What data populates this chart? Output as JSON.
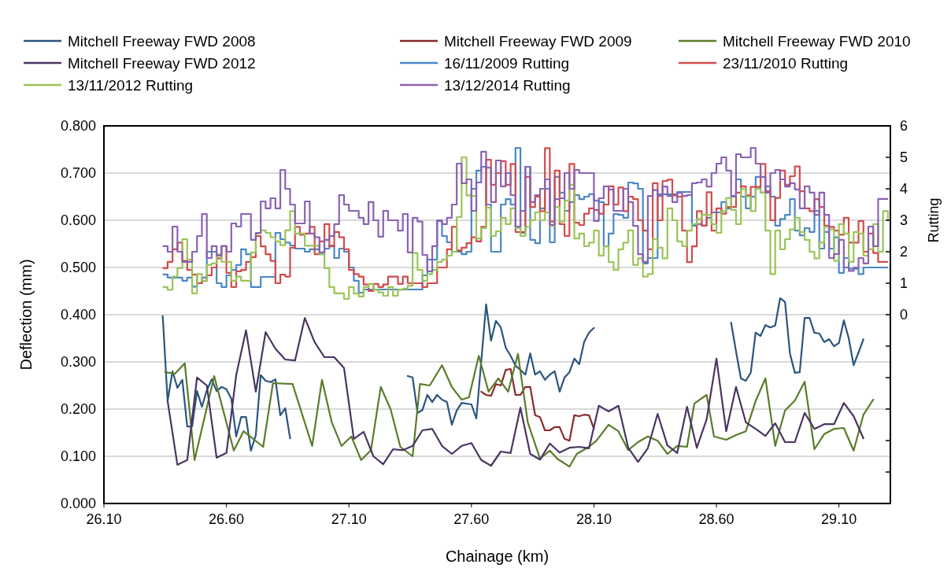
{
  "chart_data": {
    "type": "line",
    "xlabel": "Chainage (km)",
    "ylabel": "Deflection (mm)",
    "y2label": "Rutting",
    "legend": "top",
    "grid": "y",
    "xlim": [
      26.1,
      29.31
    ],
    "xticks": [
      {
        "value": 26.1,
        "label": "26.10"
      },
      {
        "value": 26.6,
        "label": "26.60"
      },
      {
        "value": 27.1,
        "label": "27.10"
      },
      {
        "value": 27.6,
        "label": "27.60"
      },
      {
        "value": 28.1,
        "label": "28.10"
      },
      {
        "value": 28.6,
        "label": "28.60"
      },
      {
        "value": 29.1,
        "label": "29.10"
      }
    ],
    "ylim": [
      0,
      0.8
    ],
    "yticks": [
      {
        "value": 0,
        "label": "0.000"
      },
      {
        "value": 0.1,
        "label": "0.100"
      },
      {
        "value": 0.2,
        "label": "0.200"
      },
      {
        "value": 0.3,
        "label": "0.300"
      },
      {
        "value": 0.4,
        "label": "0.400"
      },
      {
        "value": 0.5,
        "label": "0.500"
      },
      {
        "value": 0.6,
        "label": "0.600"
      },
      {
        "value": 0.7,
        "label": "0.700"
      },
      {
        "value": 0.8,
        "label": "0.800"
      }
    ],
    "y2lim": [
      -6,
      6
    ],
    "y2ticks": [
      {
        "value": -6,
        "label": null
      },
      {
        "value": -5,
        "label": null
      },
      {
        "value": -4,
        "label": null
      },
      {
        "value": -3,
        "label": null
      },
      {
        "value": -2,
        "label": null
      },
      {
        "value": -1,
        "label": null
      },
      0,
      1,
      2,
      3,
      4,
      5,
      6
    ],
    "x": [
      26.34,
      26.36,
      26.38,
      26.4,
      26.42,
      26.44,
      26.46,
      26.48,
      26.5,
      26.52,
      26.54,
      26.56,
      26.58,
      26.6,
      26.62,
      26.64,
      26.66,
      26.68,
      26.7,
      26.72,
      26.74,
      26.76,
      26.78,
      26.8,
      26.82,
      26.84,
      26.86,
      26.88,
      26.9,
      26.92,
      26.94,
      26.96,
      26.98,
      27.0,
      27.02,
      27.04,
      27.06,
      27.08,
      27.1,
      27.12,
      27.14,
      27.16,
      27.18,
      27.2,
      27.22,
      27.24,
      27.26,
      27.28,
      27.3,
      27.32,
      27.34,
      27.36,
      27.38,
      27.4,
      27.42,
      27.44,
      27.46,
      27.48,
      27.5,
      27.52,
      27.54,
      27.56,
      27.58,
      27.6,
      27.62,
      27.64,
      27.66,
      27.68,
      27.7,
      27.72,
      27.74,
      27.76,
      27.78,
      27.8,
      27.82,
      27.84,
      27.86,
      27.88,
      27.9,
      27.92,
      27.94,
      27.96,
      27.98,
      28.0,
      28.02,
      28.04,
      28.06,
      28.08,
      28.1,
      28.12,
      28.14,
      28.16,
      28.18,
      28.2,
      28.22,
      28.24,
      28.26,
      28.28,
      28.3,
      28.32,
      28.34,
      28.36,
      28.38,
      28.4,
      28.42,
      28.44,
      28.46,
      28.48,
      28.5,
      28.52,
      28.54,
      28.56,
      28.58,
      28.6,
      28.62,
      28.64,
      28.66,
      28.68,
      28.7,
      28.72,
      28.74,
      28.76,
      28.78,
      28.8,
      28.82,
      28.84,
      28.86,
      28.88,
      28.9,
      28.92,
      28.94,
      28.96,
      28.98,
      29.0,
      29.02,
      29.04,
      29.06,
      29.08,
      29.1,
      29.12,
      29.14,
      29.16,
      29.18,
      29.2,
      29.22,
      29.24,
      29.26,
      29.28,
      29.3
    ],
    "series": [
      {
        "name": "Mitchell Freeway FWD 2008",
        "color": "#2b557f",
        "x": [
          26.34,
          26.36,
          26.38,
          26.4,
          26.42,
          26.44,
          26.46,
          26.48,
          26.5,
          26.52,
          26.54,
          26.56,
          26.58,
          26.6,
          26.62,
          26.64,
          26.66,
          26.68,
          26.7,
          26.72,
          26.74,
          26.76,
          26.78,
          26.8,
          26.82,
          26.84,
          26.86,
          27.1,
          27.34,
          27.36,
          27.38,
          27.4,
          27.42,
          27.44,
          27.46,
          27.48,
          27.5,
          27.52,
          27.54,
          27.56,
          27.6,
          27.62,
          27.66,
          27.68,
          27.7,
          27.72,
          27.74,
          27.76,
          27.78,
          27.8,
          27.82,
          27.84,
          27.86,
          27.88,
          27.9,
          27.92,
          27.94,
          27.96,
          27.98,
          28.0,
          28.02,
          28.04,
          28.06,
          28.08,
          28.1,
          28.4,
          28.66,
          28.68,
          28.7,
          28.72,
          28.74,
          28.76,
          28.78,
          28.8,
          28.82,
          28.84,
          28.86,
          28.88,
          28.9,
          28.92,
          28.94,
          28.96,
          28.98,
          29.0,
          29.02,
          29.04,
          29.06,
          29.08,
          29.1,
          29.12,
          29.14,
          29.16,
          29.18,
          29.2
        ],
        "values": [
          0.397,
          0.217,
          0.28,
          0.245,
          0.262,
          0.163,
          0.163,
          0.238,
          0.205,
          0.24,
          0.263,
          0.238,
          0.247,
          0.242,
          0.222,
          0.142,
          0.183,
          0.183,
          0.112,
          0.145,
          0.272,
          0.26,
          0.257,
          0.263,
          0.187,
          0.202,
          0.138,
          null,
          0.27,
          0.267,
          0.192,
          0.198,
          0.23,
          0.215,
          0.23,
          0.22,
          0.215,
          0.167,
          0.197,
          0.213,
          0.21,
          0.18,
          0.422,
          0.345,
          0.387,
          0.373,
          0.33,
          0.313,
          0.292,
          0.283,
          0.273,
          0.318,
          0.273,
          0.28,
          0.262,
          0.273,
          0.28,
          0.237,
          0.267,
          0.278,
          0.307,
          0.295,
          0.342,
          0.362,
          0.372,
          null,
          0.383,
          0.322,
          0.265,
          0.26,
          0.277,
          0.362,
          0.355,
          0.378,
          0.373,
          0.377,
          0.435,
          0.427,
          0.318,
          0.277,
          0.278,
          0.393,
          0.393,
          0.362,
          0.36,
          0.342,
          0.348,
          0.333,
          0.34,
          0.388,
          0.35,
          0.293,
          0.32,
          0.348
        ]
      },
      {
        "name": "Mitchell Freeway FWD 2009",
        "color": "#8b2a2a",
        "x": [
          27.64,
          27.66,
          27.68,
          27.7,
          27.72,
          27.74,
          27.76,
          27.78,
          27.8,
          27.82,
          27.84,
          27.86,
          27.88,
          27.9,
          27.92,
          27.94,
          27.96,
          27.98,
          28.0,
          28.02,
          28.04,
          28.06,
          28.08,
          28.1
        ],
        "values": [
          0.237,
          0.23,
          0.228,
          0.253,
          0.25,
          0.283,
          0.285,
          0.23,
          0.23,
          0.247,
          0.247,
          0.187,
          0.183,
          0.155,
          0.155,
          0.162,
          0.162,
          0.137,
          0.133,
          0.187,
          0.185,
          0.188,
          0.187,
          0.158
        ]
      },
      {
        "name": "Mitchell Freeway FWD 2010",
        "color": "#5b7c2a",
        "x": [
          26.35,
          26.39,
          26.43,
          26.47,
          26.55,
          26.63,
          26.67,
          26.75,
          26.79,
          26.87,
          26.95,
          26.99,
          27.03,
          27.07,
          27.11,
          27.15,
          27.19,
          27.23,
          27.27,
          27.31,
          27.36,
          27.39,
          27.43,
          27.48,
          27.52,
          27.56,
          27.59,
          27.63,
          27.67,
          27.71,
          27.75,
          27.79,
          27.83,
          27.88,
          27.92,
          27.95,
          28.0,
          28.03,
          28.08,
          28.11,
          28.16,
          28.2,
          28.24,
          28.28,
          28.32,
          28.36,
          28.4,
          28.44,
          28.48,
          28.51,
          28.56,
          28.59,
          28.64,
          28.68,
          28.72,
          28.76,
          28.8,
          28.84,
          28.88,
          28.92,
          28.96,
          29.0,
          29.04,
          29.08,
          29.12,
          29.16,
          29.2,
          29.24
        ],
        "values": [
          0.278,
          0.275,
          0.297,
          0.092,
          0.27,
          0.112,
          0.153,
          0.12,
          0.255,
          0.253,
          0.122,
          0.262,
          0.172,
          0.122,
          0.142,
          0.092,
          0.113,
          0.247,
          0.2,
          0.12,
          0.1,
          0.253,
          0.25,
          0.293,
          0.247,
          0.22,
          0.225,
          0.313,
          0.237,
          0.265,
          0.237,
          0.317,
          0.172,
          0.095,
          0.112,
          0.095,
          0.078,
          0.105,
          0.12,
          0.133,
          0.167,
          0.153,
          0.113,
          0.13,
          0.142,
          0.133,
          0.105,
          0.122,
          0.12,
          0.212,
          0.23,
          0.142,
          0.135,
          0.145,
          0.153,
          0.217,
          0.265,
          0.122,
          0.197,
          0.218,
          0.258,
          0.115,
          0.147,
          0.158,
          0.16,
          0.112,
          0.188,
          0.22
        ]
      },
      {
        "name": "Mitchell Freeway FWD 2012",
        "color": "#4b3463",
        "x": [
          26.36,
          26.4,
          26.44,
          26.48,
          26.52,
          26.56,
          26.6,
          26.64,
          26.68,
          26.72,
          26.76,
          26.8,
          26.84,
          26.88,
          26.92,
          26.96,
          27.0,
          27.04,
          27.08,
          27.12,
          27.16,
          27.2,
          27.24,
          27.28,
          27.32,
          27.36,
          27.4,
          27.44,
          27.48,
          27.52,
          27.56,
          27.6,
          27.64,
          27.68,
          27.72,
          27.76,
          27.8,
          27.84,
          27.88,
          27.92,
          27.96,
          28.0,
          28.04,
          28.08,
          28.12,
          28.16,
          28.2,
          28.24,
          28.28,
          28.32,
          28.36,
          28.4,
          28.44,
          28.48,
          28.52,
          28.56,
          28.6,
          28.64,
          28.68,
          28.72,
          28.76,
          28.8,
          28.84,
          28.88,
          28.92,
          28.96,
          29.0,
          29.04,
          29.08,
          29.12,
          29.16,
          29.2
        ],
        "values": [
          0.217,
          0.082,
          0.092,
          0.267,
          0.25,
          0.097,
          0.107,
          0.272,
          0.367,
          0.237,
          0.363,
          0.328,
          0.305,
          0.303,
          0.393,
          0.342,
          0.31,
          0.31,
          0.287,
          0.137,
          0.152,
          0.1,
          0.083,
          0.115,
          0.113,
          0.122,
          0.155,
          0.158,
          0.122,
          0.105,
          0.122,
          0.128,
          0.092,
          0.08,
          0.11,
          0.107,
          0.203,
          0.105,
          0.093,
          0.127,
          0.108,
          0.118,
          0.12,
          0.117,
          0.207,
          0.195,
          0.207,
          0.118,
          0.088,
          0.117,
          0.19,
          0.123,
          0.107,
          0.205,
          0.118,
          0.178,
          0.307,
          0.153,
          0.247,
          0.172,
          0.158,
          0.143,
          0.17,
          0.13,
          0.13,
          0.192,
          0.158,
          0.168,
          0.168,
          0.213,
          0.185,
          0.138
        ]
      },
      {
        "name": "16/11/2009 Rutting",
        "type": "step",
        "axis": "y2",
        "color": "#4a87c6",
        "values": [
          1.28,
          1.18,
          1.18,
          1.18,
          1.08,
          1.18,
          0.89,
          1.0,
          1.18,
          2.0,
          2.0,
          1.0,
          0.88,
          1.25,
          1.42,
          1.58,
          2.08,
          1.92,
          0.88,
          0.88,
          1.2,
          1.2,
          1.2,
          2.6,
          2.4,
          2.29,
          2.2,
          2.1,
          2.1,
          2.0,
          2.08,
          2.08,
          1.92,
          2.1,
          2.2,
          1.8,
          2.1,
          2.0,
          1.5,
          1.08,
          0.7,
          0.8,
          0.8,
          0.8,
          0.8,
          0.8,
          0.8,
          0.8,
          0.8,
          0.8,
          0.8,
          0.8,
          0.8,
          1.25,
          1.75,
          1.75,
          3.0,
          2.5,
          2.3,
          2.0,
          2.0,
          1.92,
          2.0,
          4.0,
          4.58,
          4.7,
          3.5,
          2.0,
          2.0,
          3.5,
          3.67,
          3.5,
          5.3,
          2.6,
          4.7,
          2.38,
          2.27,
          3.38,
          4.0,
          2.3,
          4.38,
          3.88,
          3.3,
          3.58,
          3.8,
          3.67,
          3.75,
          3.83,
          3.63,
          3.58,
          2.17,
          2.58,
          3.2,
          3.17,
          3.08,
          4.2,
          4.17,
          4.0,
          1.63,
          1.8,
          1.8,
          3.83,
          3.83,
          3.83,
          3.83,
          3.9,
          3.9,
          3.9,
          2.83,
          2.88,
          2.83,
          3.08,
          3.25,
          3.25,
          3.58,
          3.38,
          3.75,
          4.3,
          3.75,
          3.38,
          3.75,
          4.38,
          3.88,
          4.08,
          3.75,
          2.83,
          3.04,
          3.17,
          3.67,
          2.67,
          2.52,
          2.75,
          2.63,
          3.3,
          2.1,
          2.63,
          2.1,
          2.46,
          1.33,
          1.8,
          1.46,
          1.46,
          1.29,
          1.5,
          1.5,
          1.5,
          1.5,
          1.5,
          1.5
        ]
      },
      {
        "name": "23/11/2010 Rutting",
        "type": "step",
        "axis": "y2",
        "color": "#d24b4b",
        "values": [
          1.48,
          1.68,
          2.08,
          2.29,
          1.71,
          1.42,
          1.27,
          1.0,
          1.07,
          1.25,
          1.5,
          1.79,
          2.18,
          1.33,
          0.88,
          1.38,
          1.42,
          1.68,
          1.83,
          2.5,
          2.17,
          1.92,
          1.71,
          1.0,
          1.27,
          1.21,
          2.13,
          2.79,
          2.54,
          2.58,
          2.79,
          1.92,
          2.33,
          2.88,
          2.17,
          2.63,
          2.46,
          2.08,
          1.42,
          1.29,
          1.21,
          0.96,
          0.75,
          0.98,
          0.88,
          0.96,
          1.21,
          1.21,
          0.98,
          1.21,
          1.0,
          1.0,
          1.0,
          0.88,
          1.0,
          1.0,
          1.5,
          1.5,
          2.08,
          2.79,
          2.04,
          2.13,
          2.27,
          2.46,
          2.33,
          2.79,
          4.92,
          4.13,
          4.5,
          4.88,
          4.13,
          4.79,
          2.63,
          2.63,
          4.38,
          3.42,
          3.75,
          3.29,
          5.29,
          2.96,
          4.58,
          2.88,
          2.5,
          4.79,
          2.92,
          2.85,
          3.21,
          3.38,
          3.33,
          3.21,
          3.5,
          4.08,
          3.5,
          4.04,
          3.29,
          3.75,
          3.67,
          3.0,
          2.67,
          2.08,
          4.18,
          3.0,
          4.25,
          4.29,
          3.79,
          3.75,
          2.67,
          1.67,
          2.17,
          3.29,
          2.83,
          3.89,
          2.67,
          3.38,
          3.21,
          3.42,
          3.42,
          3.88,
          4.08,
          3.79,
          4.06,
          4.06,
          4.79,
          3.92,
          3.0,
          3.71,
          4.58,
          4.13,
          4.4,
          4.71,
          3.92,
          3.38,
          3.29,
          3.67,
          3.42,
          2.83,
          2.79,
          2.67,
          2.54,
          3.08,
          2.29,
          2.29,
          2.98,
          2.0,
          2.58,
          1.96,
          1.68,
          1.68,
          1.68
        ]
      },
      {
        "name": "13/11/2012 Rutting",
        "type": "step",
        "axis": "y2",
        "color": "#9bc45a",
        "values": [
          0.88,
          0.79,
          1.21,
          1.48,
          2.4,
          1.75,
          0.68,
          1.29,
          1.08,
          1.58,
          1.63,
          1.92,
          1.68,
          1.68,
          1.08,
          1.21,
          1.08,
          1.08,
          1.98,
          2.58,
          2.68,
          2.6,
          2.46,
          2.33,
          2.21,
          2.68,
          3.29,
          2.58,
          2.58,
          2.19,
          2.19,
          2.19,
          1.93,
          1.48,
          0.88,
          0.68,
          0.68,
          0.5,
          0.88,
          0.67,
          0.58,
          0.88,
          0.98,
          0.79,
          0.71,
          0.6,
          0.88,
          0.6,
          0.79,
          0.83,
          0.92,
          1.96,
          1.42,
          1.08,
          1.29,
          1.42,
          1.68,
          1.75,
          1.88,
          2.0,
          3.1,
          5.0,
          3.79,
          3.77,
          2.42,
          2.75,
          3.4,
          2.5,
          2.65,
          3.08,
          2.88,
          3.38,
          2.75,
          2.5,
          2.79,
          3.0,
          3.25,
          3.0,
          3.25,
          2.83,
          3.42,
          2.96,
          3.63,
          4.13,
          2.42,
          2.58,
          2.18,
          2.29,
          2.67,
          1.88,
          2.18,
          1.67,
          1.42,
          2.08,
          2.29,
          2.68,
          1.58,
          1.79,
          1.21,
          1.29,
          2.4,
          2.13,
          1.79,
          3.38,
          3.0,
          2.33,
          2.18,
          2.67,
          2.88,
          3.04,
          3.18,
          3.17,
          2.88,
          2.6,
          3.29,
          3.71,
          3.33,
          2.88,
          4.0,
          3.75,
          3.29,
          4.0,
          3.88,
          2.67,
          1.29,
          2.67,
          2.08,
          2.4,
          2.71,
          3.08,
          2.63,
          2.38,
          2.0,
          1.79,
          2.29,
          2.79,
          2.71,
          1.71,
          2.88,
          2.58,
          1.68,
          2.63,
          2.58,
          1.88,
          2.08,
          2.88,
          2.0,
          3.29,
          3.0
        ]
      },
      {
        "name": "13/12/2014 Rutting",
        "type": "step",
        "axis": "y2",
        "color": "#8b62b4",
        "values": [
          2.18,
          2.0,
          2.8,
          2.0,
          1.68,
          1.68,
          2.0,
          2.5,
          3.2,
          1.8,
          2.18,
          1.88,
          2.18,
          2.0,
          2.9,
          2.8,
          3.2,
          3.2,
          2.38,
          2.6,
          3.6,
          3.38,
          3.7,
          3.38,
          4.6,
          4.0,
          3.5,
          2.9,
          2.9,
          3.6,
          2.58,
          2.46,
          1.98,
          2.38,
          2.5,
          2.88,
          3.8,
          3.5,
          3.3,
          3.3,
          3.08,
          2.88,
          3.58,
          3.0,
          2.48,
          3.3,
          3.0,
          3.0,
          2.67,
          3.2,
          1.98,
          3.08,
          2.96,
          1.9,
          1.38,
          2.18,
          2.98,
          2.88,
          3.08,
          3.5,
          4.8,
          4.18,
          4.3,
          3.3,
          4.2,
          5.18,
          4.67,
          3.58,
          4.9,
          4.08,
          4.5,
          3.8,
          2.8,
          3.3,
          4.7,
          3.58,
          3.8,
          4.0,
          4.3,
          2.85,
          3.67,
          3.7,
          4.5,
          4.0,
          4.6,
          4.5,
          4.5,
          4.5,
          2.98,
          3.7,
          4.08,
          3.98,
          3.3,
          3.3,
          4.0,
          3.58,
          2.82,
          1.92,
          1.68,
          3.77,
          3.96,
          3.77,
          4.07,
          3.77,
          3.58,
          3.88,
          3.77,
          3.8,
          4.18,
          4.2,
          4.3,
          4.07,
          4.5,
          4.8,
          5.0,
          4.58,
          3.77,
          5.1,
          5.0,
          5.0,
          5.3,
          4.8,
          4.38,
          3.88,
          4.5,
          4.6,
          4.3,
          4.07,
          4.18,
          3.98,
          3.38,
          4.08,
          3.88,
          3.17,
          3.88,
          3.17,
          1.8,
          1.93,
          2.38,
          1.5,
          1.39,
          1.5,
          1.8,
          1.63,
          2.8,
          2.18,
          3.68,
          3.68,
          3.68
        ]
      }
    ]
  }
}
